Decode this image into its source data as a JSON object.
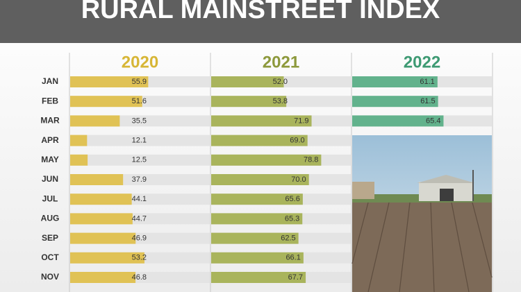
{
  "chart_data": {
    "type": "bar",
    "title": "RURAL MAINSTREET INDEX",
    "categories": [
      "JAN",
      "FEB",
      "MAR",
      "APR",
      "MAY",
      "JUN",
      "JUL",
      "AUG",
      "SEP",
      "OCT",
      "NOV"
    ],
    "xlim": [
      0,
      100
    ],
    "series": [
      {
        "name": "2020",
        "color": "#e0c255",
        "values": [
          55.9,
          51.6,
          35.5,
          12.1,
          12.5,
          37.9,
          44.1,
          44.7,
          46.9,
          53.2,
          46.8
        ]
      },
      {
        "name": "2021",
        "color": "#a9b45c",
        "values": [
          52,
          53.8,
          71.9,
          69,
          78.8,
          70,
          65.6,
          65.3,
          62.5,
          66.1,
          67.7
        ],
        "value_labels": [
          "52.0",
          "53.8",
          "71.9",
          "69.0",
          "78.8",
          "70.0",
          "65.6",
          "65.3",
          "62.5",
          "66.1",
          "67.7"
        ]
      },
      {
        "name": "2022",
        "color": "#62b28c",
        "values": [
          61.1,
          61.5,
          65.4,
          null,
          null,
          null,
          null,
          null,
          null,
          null,
          null
        ]
      }
    ]
  }
}
